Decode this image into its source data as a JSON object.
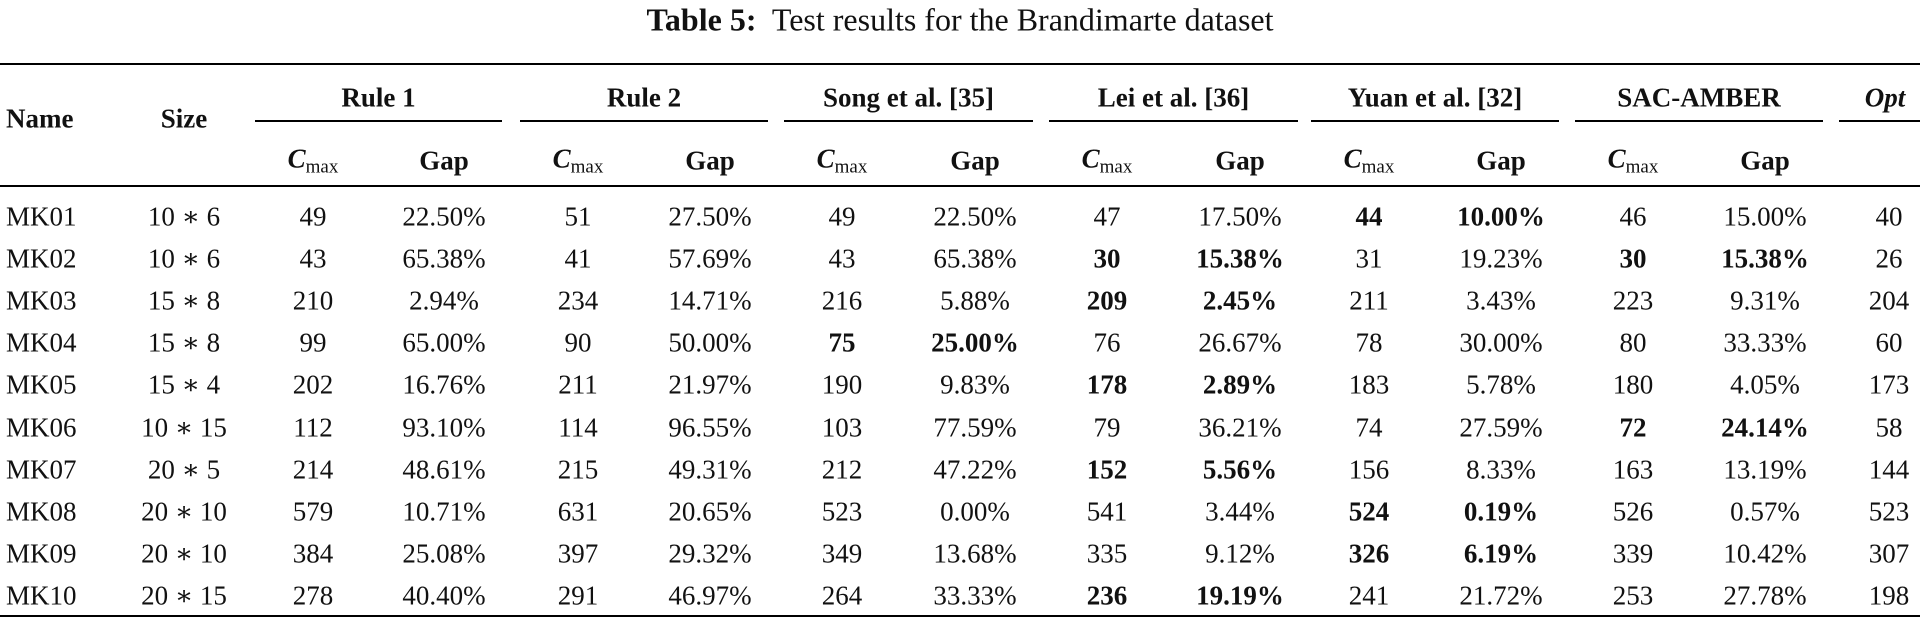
{
  "caption": {
    "label": "Table 5:",
    "text": "Test results for the Brandimarte dataset"
  },
  "table": {
    "name_header": "Name",
    "size_header": "Size",
    "groups": [
      "Rule 1",
      "Rule 2",
      "Song et al. [35]",
      "Lei et al. [36]",
      "Yuan et al. [32]",
      "SAC-AMBER"
    ],
    "opt_header": "Opt",
    "metric": {
      "symbol": "C",
      "subscript": "max",
      "gap": "Gap"
    },
    "rows": [
      {
        "cells": [
          "MK01",
          "10 ∗ 6",
          "49",
          "22.50%",
          "51",
          "27.50%",
          "49",
          "22.50%",
          "47",
          "17.50%",
          "44",
          "10.00%",
          "46",
          "15.00%",
          "40"
        ],
        "bold": [
          10,
          11
        ]
      },
      {
        "cells": [
          "MK02",
          "10 ∗ 6",
          "43",
          "65.38%",
          "41",
          "57.69%",
          "43",
          "65.38%",
          "30",
          "15.38%",
          "31",
          "19.23%",
          "30",
          "15.38%",
          "26"
        ],
        "bold": [
          8,
          9,
          12,
          13
        ]
      },
      {
        "cells": [
          "MK03",
          "15 ∗ 8",
          "210",
          "2.94%",
          "234",
          "14.71%",
          "216",
          "5.88%",
          "209",
          "2.45%",
          "211",
          "3.43%",
          "223",
          "9.31%",
          "204"
        ],
        "bold": [
          8,
          9
        ]
      },
      {
        "cells": [
          "MK04",
          "15 ∗ 8",
          "99",
          "65.00%",
          "90",
          "50.00%",
          "75",
          "25.00%",
          "76",
          "26.67%",
          "78",
          "30.00%",
          "80",
          "33.33%",
          "60"
        ],
        "bold": [
          6,
          7
        ]
      },
      {
        "cells": [
          "MK05",
          "15 ∗ 4",
          "202",
          "16.76%",
          "211",
          "21.97%",
          "190",
          "9.83%",
          "178",
          "2.89%",
          "183",
          "5.78%",
          "180",
          "4.05%",
          "173"
        ],
        "bold": [
          8,
          9
        ]
      },
      {
        "cells": [
          "MK06",
          "10 ∗ 15",
          "112",
          "93.10%",
          "114",
          "96.55%",
          "103",
          "77.59%",
          "79",
          "36.21%",
          "74",
          "27.59%",
          "72",
          "24.14%",
          "58"
        ],
        "bold": [
          12,
          13
        ]
      },
      {
        "cells": [
          "MK07",
          "20 ∗ 5",
          "214",
          "48.61%",
          "215",
          "49.31%",
          "212",
          "47.22%",
          "152",
          "5.56%",
          "156",
          "8.33%",
          "163",
          "13.19%",
          "144"
        ],
        "bold": [
          8,
          9
        ]
      },
      {
        "cells": [
          "MK08",
          "20 ∗ 10",
          "579",
          "10.71%",
          "631",
          "20.65%",
          "523",
          "0.00%",
          "541",
          "3.44%",
          "524",
          "0.19%",
          "526",
          "0.57%",
          "523"
        ],
        "bold": [
          10,
          11
        ]
      },
      {
        "cells": [
          "MK09",
          "20 ∗ 10",
          "384",
          "25.08%",
          "397",
          "29.32%",
          "349",
          "13.68%",
          "335",
          "9.12%",
          "326",
          "6.19%",
          "339",
          "10.42%",
          "307"
        ],
        "bold": [
          10,
          11
        ]
      },
      {
        "cells": [
          "MK10",
          "20 ∗ 15",
          "278",
          "40.40%",
          "291",
          "46.97%",
          "264",
          "33.33%",
          "236",
          "19.19%",
          "241",
          "21.72%",
          "253",
          "27.78%",
          "198"
        ],
        "bold": [
          8,
          9
        ]
      }
    ]
  }
}
